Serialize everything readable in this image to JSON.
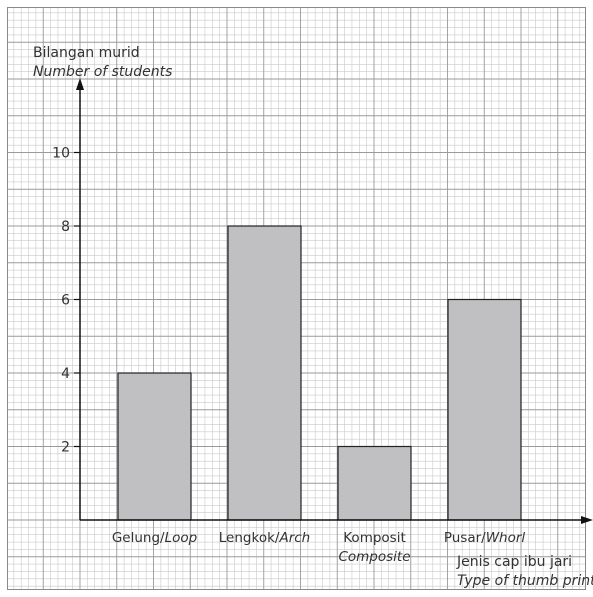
{
  "chart_data": {
    "type": "bar",
    "categories": [
      {
        "main": "Gelung/",
        "alt": "Loop",
        "line2": ""
      },
      {
        "main": "Lengkok/",
        "alt": "Arch",
        "line2": ""
      },
      {
        "main": "Komposit",
        "alt": "",
        "line2": "Composite"
      },
      {
        "main": "Pusar/",
        "alt": "Whorl",
        "line2": ""
      }
    ],
    "values": [
      4,
      8,
      2,
      6
    ],
    "ylabel": "Bilangan murid",
    "ylabel_en": "Number of students",
    "xlabel": "Jenis cap ibu jari",
    "xlabel_en": "Type of thumb print",
    "yticks": [
      2,
      4,
      6,
      8,
      10
    ],
    "ylim": [
      0,
      12
    ],
    "grid": true,
    "colors": {
      "bar_fill": "#c0c0c2",
      "bar_stroke": "#222222",
      "grid_minor": "#c9c9c9",
      "grid_major": "#9a9a9a",
      "axis": "#111111"
    }
  }
}
